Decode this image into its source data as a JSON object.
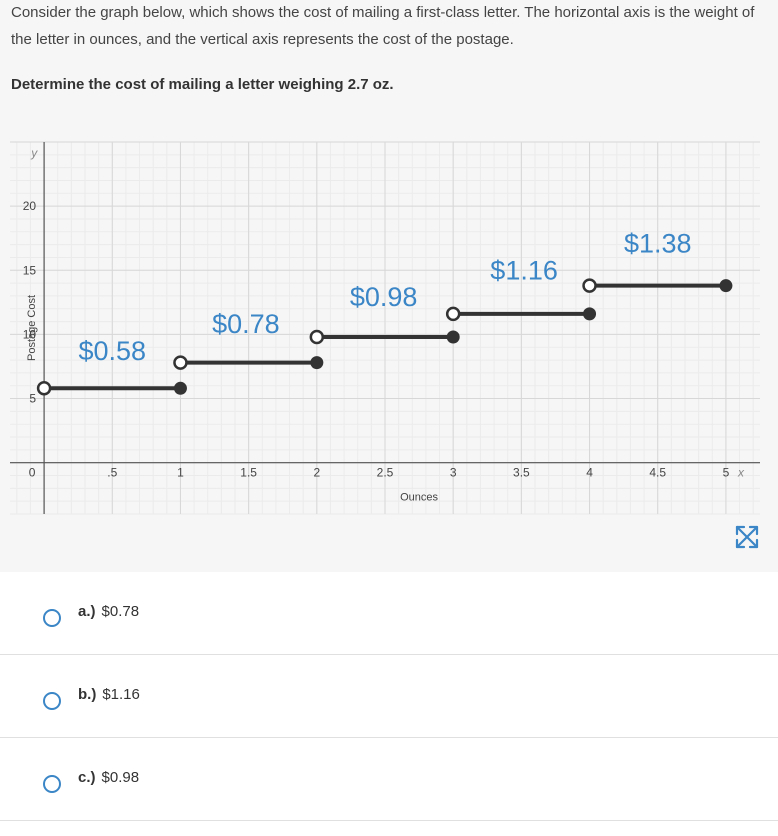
{
  "question": {
    "prompt": "Consider the graph below, which shows the cost of mailing a first-class letter. The horizontal axis is the weight of the letter in ounces, and the vertical axis represents the cost of the postage.",
    "instruction": "Determine the cost of mailing a letter weighing 2.7 oz."
  },
  "chart_data": {
    "type": "line",
    "subtype": "step",
    "xlabel": "Ounces",
    "ylabel": "Postage Cost",
    "x_axis_letter": "x",
    "y_axis_letter": "y",
    "xlim": [
      -0.25,
      5.25
    ],
    "ylim": [
      -4,
      25
    ],
    "x_ticks": [
      {
        "value": 0.5,
        "label": ".5"
      },
      {
        "value": 1,
        "label": "1"
      },
      {
        "value": 1.5,
        "label": "1.5"
      },
      {
        "value": 2,
        "label": "2"
      },
      {
        "value": 2.5,
        "label": "2.5"
      },
      {
        "value": 3,
        "label": "3"
      },
      {
        "value": 3.5,
        "label": "3.5"
      },
      {
        "value": 4,
        "label": "4"
      },
      {
        "value": 4.5,
        "label": "4.5"
      },
      {
        "value": 5,
        "label": "5"
      }
    ],
    "y_ticks": [
      {
        "value": 5,
        "label": "5"
      },
      {
        "value": 10,
        "label": "10"
      },
      {
        "value": 15,
        "label": "15"
      },
      {
        "value": 20,
        "label": "20"
      }
    ],
    "origin_label": "0",
    "segments": [
      {
        "x_start": 0,
        "x_end": 1,
        "y": 5.8,
        "open_start": true,
        "closed_end": true,
        "label": "$0.58",
        "label_x": 0.5,
        "label_y": 8
      },
      {
        "x_start": 1,
        "x_end": 2,
        "y": 7.8,
        "open_start": true,
        "closed_end": true,
        "label": "$0.78",
        "label_x": 1.48,
        "label_y": 10.1
      },
      {
        "x_start": 2,
        "x_end": 3,
        "y": 9.8,
        "open_start": true,
        "closed_end": true,
        "label": "$0.98",
        "label_x": 2.49,
        "label_y": 12.2
      },
      {
        "x_start": 3,
        "x_end": 4,
        "y": 11.6,
        "open_start": true,
        "closed_end": true,
        "label": "$1.16",
        "label_x": 3.52,
        "label_y": 14.3
      },
      {
        "x_start": 4,
        "x_end": 5,
        "y": 13.8,
        "open_start": true,
        "closed_end": true,
        "label": "$1.38",
        "label_x": 4.5,
        "label_y": 16.4
      }
    ],
    "colors": {
      "line": "#333333",
      "label": "#3b86c6",
      "grid_major": "#d7d7d7",
      "grid_minor": "#ebebeb",
      "axis": "#333333"
    },
    "grid": true
  },
  "choices": [
    {
      "letter": "a.)",
      "text": "$0.78"
    },
    {
      "letter": "b.)",
      "text": "$1.16"
    },
    {
      "letter": "c.)",
      "text": "$0.98"
    }
  ],
  "icons": {
    "expand": "expand-arrows-icon"
  }
}
